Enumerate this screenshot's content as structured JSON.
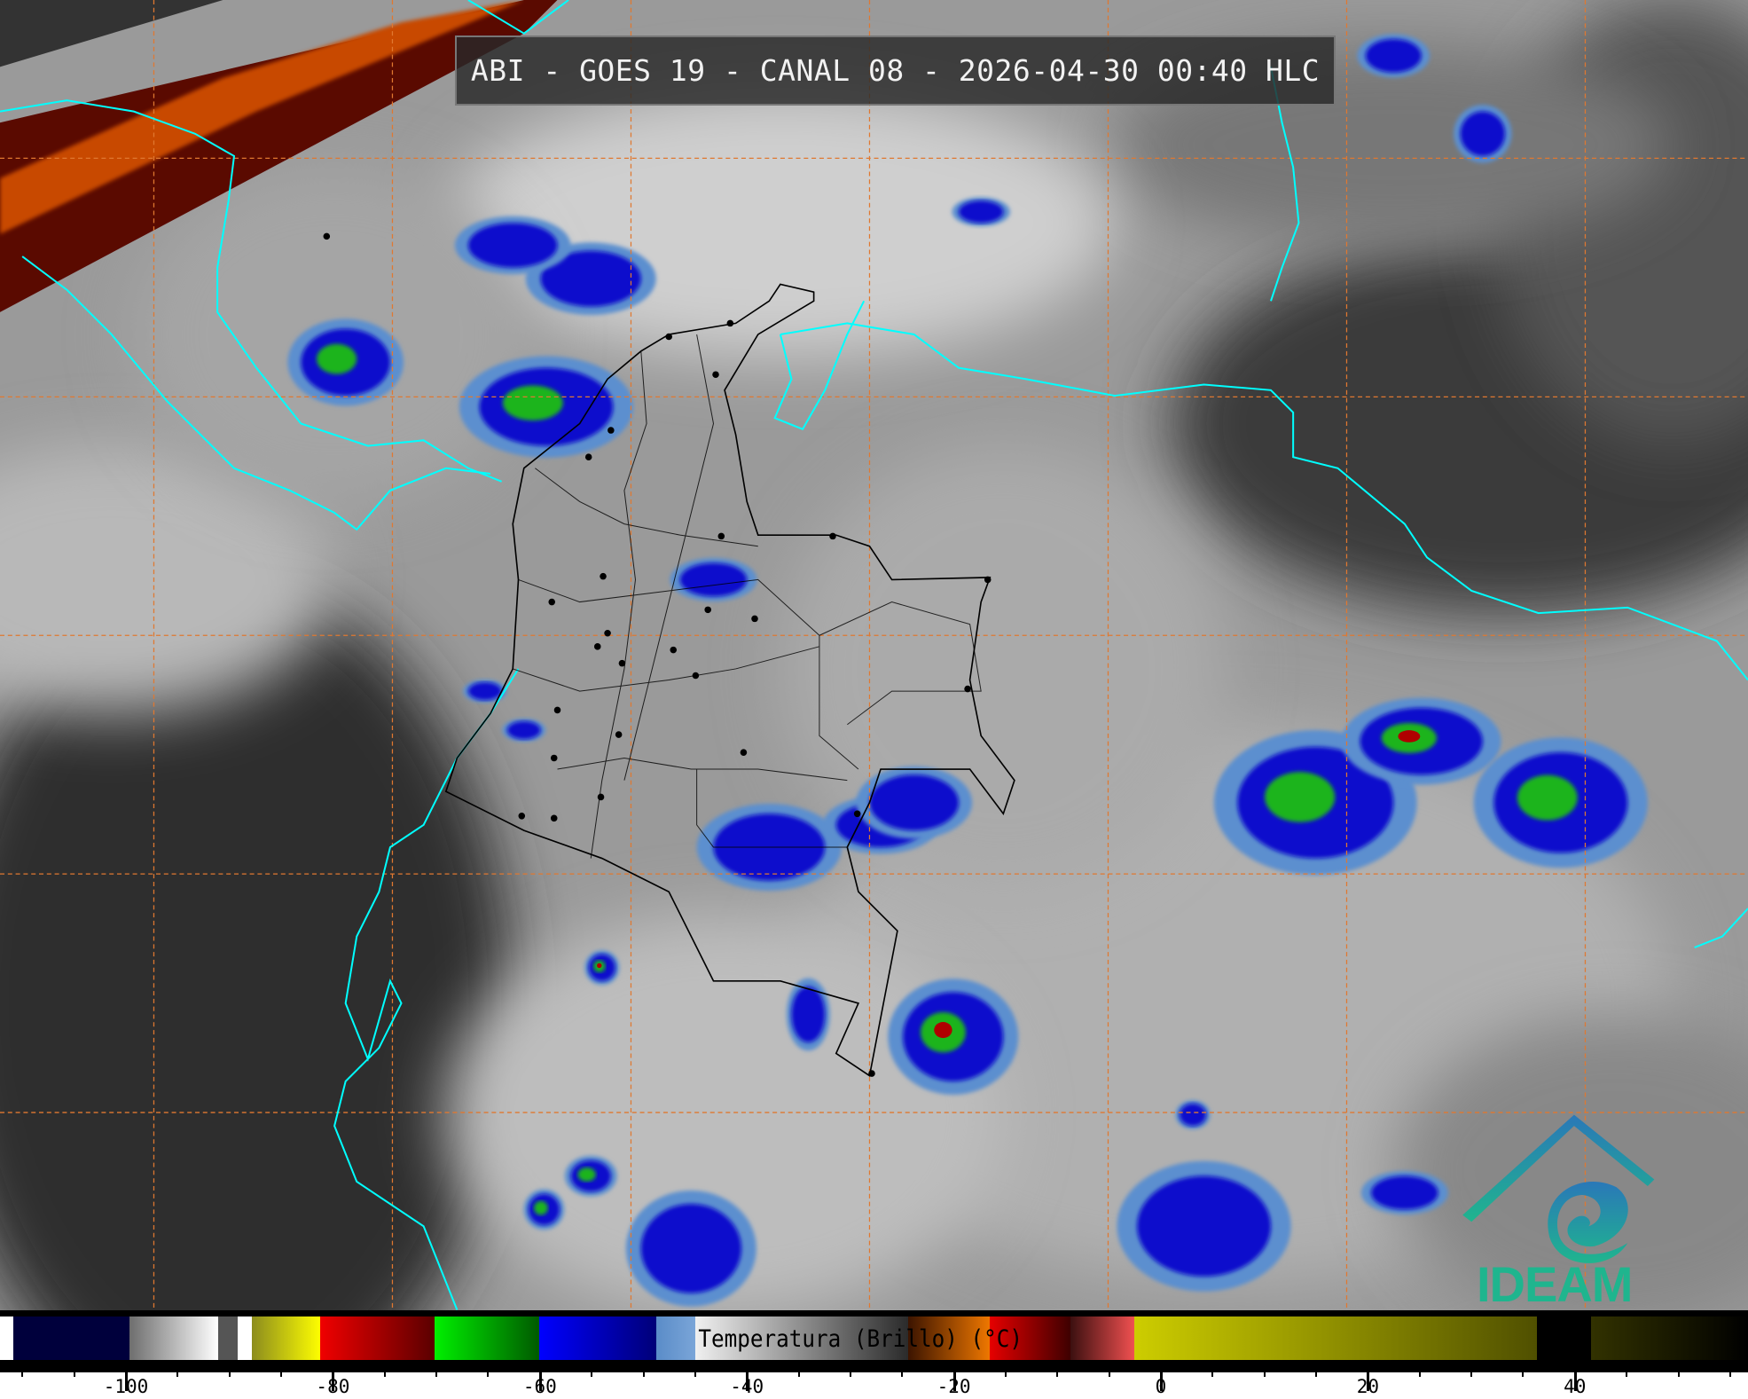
{
  "title": "ABI - GOES 19 - CANAL 08 - 2026-04-30 00:40 HLC",
  "logo": {
    "text": "IDEAM",
    "color": "#1fb58e",
    "icon": "ideam-roof-spiral-logo"
  },
  "colorbar": {
    "label": "Temperatura (Brillo) (°C)",
    "range": [
      -112,
      57
    ],
    "ticks": [
      -100,
      -80,
      -60,
      -40,
      -20,
      0,
      20,
      40
    ],
    "minor_step": 5,
    "segments": [
      {
        "from": -112.2,
        "to": -110.9,
        "colors": [
          "#ffffff",
          "#ffffff"
        ]
      },
      {
        "from": -110.9,
        "to": -99.7,
        "colors": [
          "#00003c",
          "#00003c"
        ]
      },
      {
        "from": -99.7,
        "to": -91.1,
        "colors": [
          "#6e6e6e",
          "#ffffff"
        ]
      },
      {
        "from": -91.1,
        "to": -89.2,
        "colors": [
          "#555555",
          "#555555"
        ]
      },
      {
        "from": -89.2,
        "to": -87.8,
        "colors": [
          "#ffffff",
          "#ffffff"
        ]
      },
      {
        "from": -87.8,
        "to": -81.2,
        "colors": [
          "#8c8c1e",
          "#ffff00"
        ]
      },
      {
        "from": -81.2,
        "to": -70.2,
        "colors": [
          "#f00000",
          "#5a0000"
        ]
      },
      {
        "from": -70.2,
        "to": -60.1,
        "colors": [
          "#00f000",
          "#005a00"
        ]
      },
      {
        "from": -60.1,
        "to": -48.8,
        "colors": [
          "#0000ff",
          "#000078"
        ]
      },
      {
        "from": -48.8,
        "to": -45.0,
        "colors": [
          "#5a8cc8",
          "#7aa5d8"
        ]
      },
      {
        "from": -45.0,
        "to": -24.4,
        "colors": [
          "#f0f0f0",
          "#2a2a2a"
        ]
      },
      {
        "from": -24.4,
        "to": -16.5,
        "colors": [
          "#3c1400",
          "#f07800"
        ]
      },
      {
        "from": -16.5,
        "to": -8.7,
        "colors": [
          "#e60000",
          "#3c0000"
        ]
      },
      {
        "from": -8.7,
        "to": -2.6,
        "colors": [
          "#3c1010",
          "#f05050"
        ]
      },
      {
        "from": -2.6,
        "to": 36.3,
        "colors": [
          "#cdcd00",
          "#505000"
        ]
      },
      {
        "from": 36.3,
        "to": 41.6,
        "colors": [
          "#000000",
          "#000000"
        ]
      },
      {
        "from": 41.6,
        "to": 56.9,
        "colors": [
          "#323200",
          "#000000"
        ]
      }
    ]
  },
  "map": {
    "gridline_color": "#e07830",
    "coastline_color": "#00ffff",
    "border_color": "#000000"
  }
}
